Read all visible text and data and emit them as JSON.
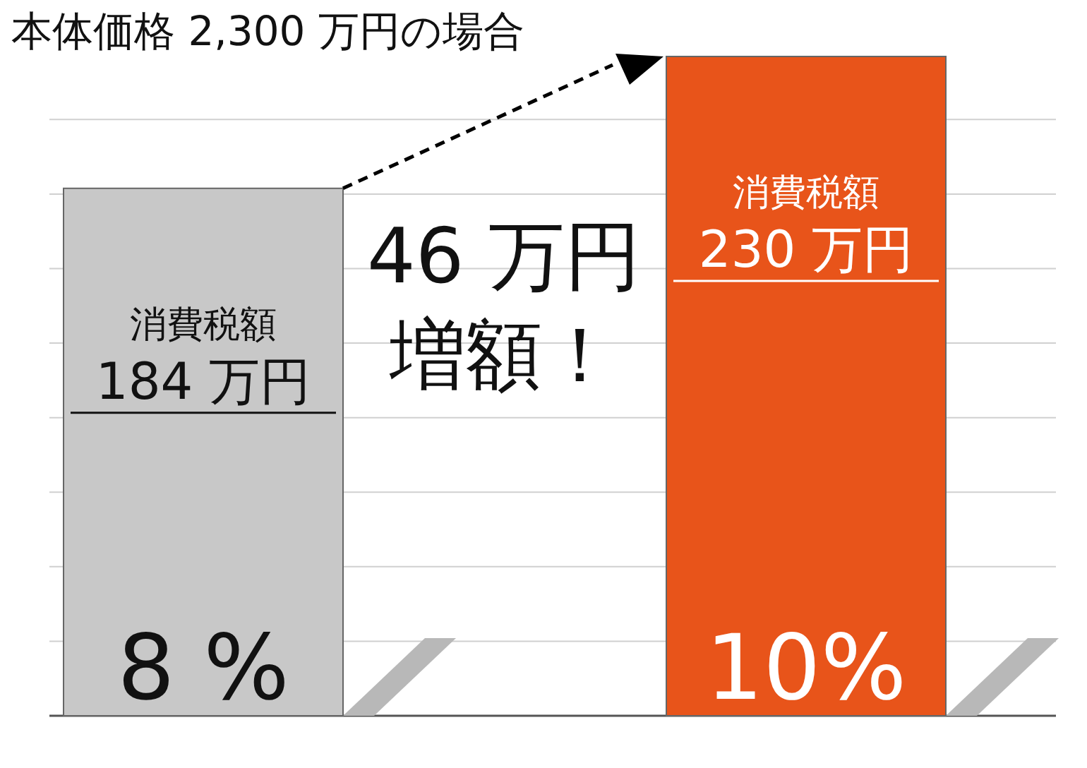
{
  "chart_data": {
    "type": "bar",
    "title": "本体価格 2,300 万円の場合",
    "categories": [
      "8 %",
      "10%"
    ],
    "values": [
      184,
      230
    ],
    "colors": [
      "#c8c8c8",
      "#e8541a"
    ],
    "value_labels": [
      "消費税額\n184 万円",
      "消費税額\n230 万円"
    ],
    "annotations": [
      "46 万円",
      "増額！"
    ],
    "ylim": [
      0,
      230
    ],
    "yticks": [
      {
        "value": 26,
        "label": null
      },
      {
        "value": 52,
        "label": null
      },
      {
        "value": 78,
        "label": null
      },
      {
        "value": 104,
        "label": null
      },
      {
        "value": 130,
        "label": null
      },
      {
        "value": 156,
        "label": null
      },
      {
        "value": 182,
        "label": null
      },
      {
        "value": 208,
        "label": null
      }
    ],
    "grid": "y"
  }
}
